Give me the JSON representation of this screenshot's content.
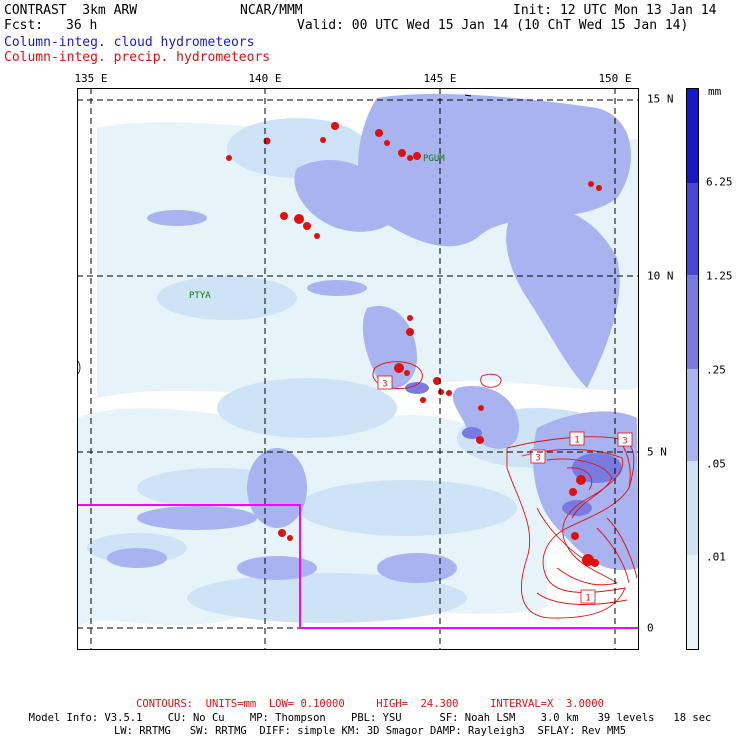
{
  "header": {
    "left_title": "CONTRAST  3km ARW",
    "center_title": "NCAR/MMM",
    "init": "Init: 12 UTC Mon 13 Jan 14",
    "fcst_label": "Fcst:",
    "fcst_value": "36 h",
    "valid": "Valid: 00 UTC Wed 15 Jan 14 (10 ChT Wed 15 Jan 14)",
    "field1": "Column-integ. cloud hydrometeors",
    "field2": "Column-integ. precip. hydrometeors"
  },
  "map": {
    "lon_labels": [
      "135 E",
      "140 E",
      "145 E",
      "150 E"
    ],
    "lat_labels": [
      "15 N",
      "10 N",
      "5 N",
      "0"
    ],
    "station_labels": [
      "PGUM",
      "PTYA"
    ],
    "contour_labels": [
      "3",
      "1",
      "3",
      "3",
      "1"
    ],
    "colors": {
      "level1": "#e6f4fa",
      "level2": "#cfe3f7",
      "level3": "#a9b3f0",
      "level4": "#7a7be0",
      "level5": "#4848d8",
      "level6": "#1818c8",
      "precip": "#e01010",
      "domain_box": "#ff00ff"
    }
  },
  "colorbar": {
    "unit": "mm",
    "labels": [
      "6.25",
      "1.25",
      ".25",
      ".05",
      ".01"
    ]
  },
  "footer": {
    "contours": "CONTOURS:  UNITS=mm  LOW= 0.10000     HIGH=  24.300     INTERVAL=X  3.0000",
    "model_line1": "Model Info: V3.5.1    CU: No Cu    MP: Thompson    PBL: YSU      SF: Noah LSM    3.0 km   39 levels   18 sec",
    "model_line2": "LW: RRTMG   SW: RRTMG  DIFF: simple KM: 3D Smagor DAMP: Rayleigh3  SFLAY: Rev MM5"
  }
}
